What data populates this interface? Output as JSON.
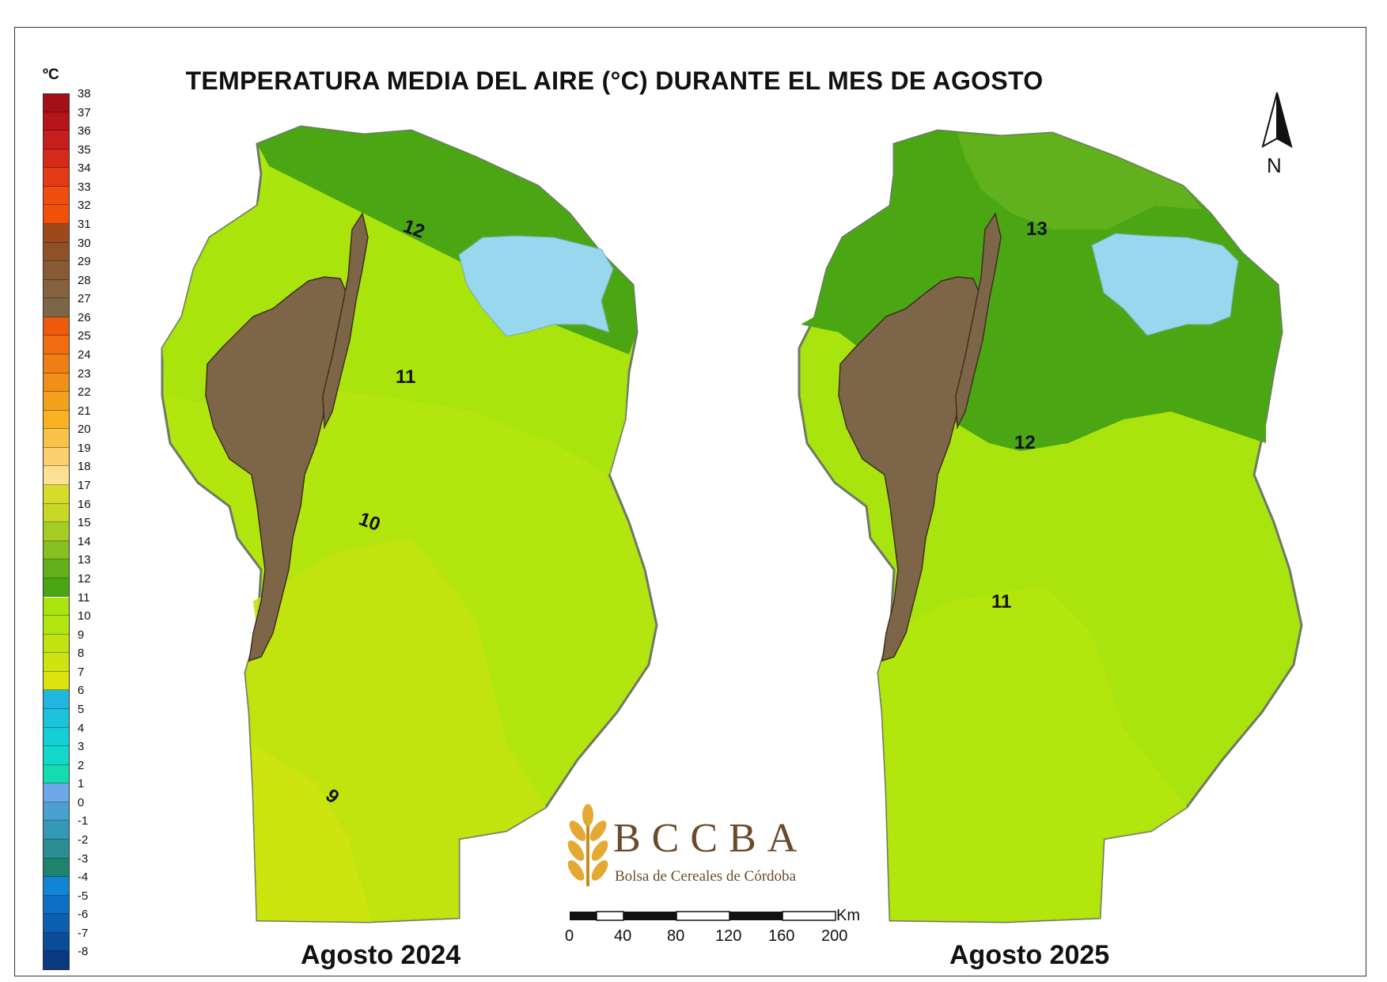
{
  "title": "TEMPERATURA MEDIA DEL AIRE (°C) DURANTE EL MES DE AGOSTO",
  "legend": {
    "unit": "ºC",
    "entries": [
      {
        "label": "38",
        "color": "#a50f15"
      },
      {
        "label": "37",
        "color": "#b5141a"
      },
      {
        "label": "36",
        "color": "#c71e1e"
      },
      {
        "label": "35",
        "color": "#d62b1a"
      },
      {
        "label": "34",
        "color": "#e33b16"
      },
      {
        "label": "33",
        "color": "#f04e0e"
      },
      {
        "label": "32",
        "color": "#f0500a"
      },
      {
        "label": "31",
        "color": "#9c4a1c"
      },
      {
        "label": "30",
        "color": "#8e5229"
      },
      {
        "label": "29",
        "color": "#8a5a34"
      },
      {
        "label": "28",
        "color": "#86623f"
      },
      {
        "label": "27",
        "color": "#7d6647"
      },
      {
        "label": "26",
        "color": "#ee5a0c"
      },
      {
        "label": "25",
        "color": "#ef6c10"
      },
      {
        "label": "24",
        "color": "#ef7e14"
      },
      {
        "label": "23",
        "color": "#f09018"
      },
      {
        "label": "22",
        "color": "#f4a11e"
      },
      {
        "label": "21",
        "color": "#f8b224"
      },
      {
        "label": "20",
        "color": "#fbc24a"
      },
      {
        "label": "19",
        "color": "#fcd06e"
      },
      {
        "label": "18",
        "color": "#fde094"
      },
      {
        "label": "17",
        "color": "#d7dc2b"
      },
      {
        "label": "16",
        "color": "#c8d826"
      },
      {
        "label": "15",
        "color": "#a6cd26"
      },
      {
        "label": "14",
        "color": "#86c021"
      },
      {
        "label": "13",
        "color": "#62b11c"
      },
      {
        "label": "12",
        "color": "#4aa713"
      },
      {
        "label": "11",
        "color": "#a9e40e"
      },
      {
        "label": "10",
        "color": "#b3e60e"
      },
      {
        "label": "9",
        "color": "#c3e30e"
      },
      {
        "label": "8",
        "color": "#cfe30e"
      },
      {
        "label": "7",
        "color": "#dde30e"
      },
      {
        "label": "6",
        "color": "#22b5df"
      },
      {
        "label": "5",
        "color": "#1cc3dd"
      },
      {
        "label": "4",
        "color": "#14d0d6"
      },
      {
        "label": "3",
        "color": "#12d8c7"
      },
      {
        "label": "2",
        "color": "#14dcb0"
      },
      {
        "label": "1",
        "color": "#6fa8e8"
      },
      {
        "label": "0",
        "color": "#4aa0cf"
      },
      {
        "label": "-1",
        "color": "#3499b5"
      },
      {
        "label": "-2",
        "color": "#2a8e93"
      },
      {
        "label": "-3",
        "color": "#1e8470"
      },
      {
        "label": "-4",
        "color": "#1084d6"
      },
      {
        "label": "-5",
        "color": "#0e70c4"
      },
      {
        "label": "-6",
        "color": "#0c5eb0"
      },
      {
        "label": "-7",
        "color": "#0a4c98"
      },
      {
        "label": "-8",
        "color": "#083a80"
      }
    ]
  },
  "maps": [
    {
      "label": "Agosto 2024",
      "isolines": [
        "12",
        "11",
        "10",
        "9"
      ]
    },
    {
      "label": "Agosto 2025",
      "isolines": [
        "13",
        "12",
        "11"
      ]
    }
  ],
  "logo": {
    "name": "BCCBA",
    "subtitle": "Bolsa de Cereales de Córdoba"
  },
  "scale_bar": {
    "unit": "Km",
    "ticks": [
      "0",
      "40",
      "80",
      "120",
      "160",
      "200"
    ]
  },
  "north_arrow": {
    "label": "N",
    "icon": "north-arrow-icon"
  },
  "colors": {
    "water": "#97d8ef",
    "mountains": "#7d6647",
    "zone12": "#4aa713",
    "zone13": "#62b11c",
    "zone11": "#a9e40e",
    "zone10": "#b3e60e",
    "zone9": "#c3e30e"
  }
}
